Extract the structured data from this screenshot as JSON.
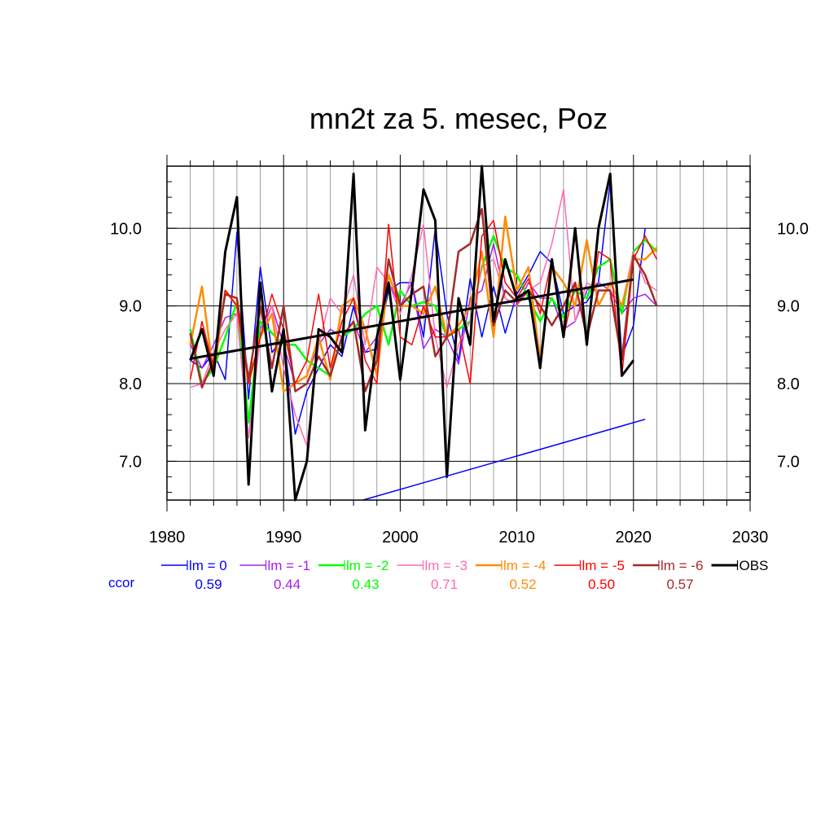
{
  "chart_data": {
    "type": "line",
    "title": "mn2t za 5. mesec, Poz",
    "xlabel": "",
    "ylabel": "",
    "xlim": [
      1980,
      2030
    ],
    "ylim": [
      6.5,
      10.8
    ],
    "x_ticks": [
      1980,
      1990,
      2000,
      2010,
      2020,
      2030
    ],
    "x_tick_labels": [
      "1980",
      "1990",
      "2000",
      "2010",
      "2020",
      "2030"
    ],
    "y_ticks": [
      7.0,
      8.0,
      9.0,
      10.0
    ],
    "y_tick_labels": [
      "7.0",
      "8.0",
      "9.0",
      "10.0"
    ],
    "grid": true,
    "legend_placement": "bottom",
    "ccor_label": "ccor",
    "ccor_color": "#0000ff",
    "series": [
      {
        "name": "lm = 0",
        "color": "#0000ff",
        "width": 1.5,
        "ccor": "0.59",
        "x": [
          1982,
          1983,
          1984,
          1985,
          1986,
          1987,
          1988,
          1989,
          1990,
          1991,
          1992,
          1993,
          1994,
          1995,
          1996,
          1997,
          1998,
          1999,
          2000,
          2001,
          2002,
          2003,
          2004,
          2005,
          2006,
          2007,
          2008,
          2009,
          2010,
          2011,
          2012,
          2013,
          2014,
          2015,
          2016,
          2017,
          2018,
          2019,
          2020,
          2021
        ],
        "values": [
          8.3,
          8.2,
          8.4,
          8.05,
          9.95,
          7.8,
          9.5,
          8.4,
          8.6,
          7.35,
          7.9,
          8.2,
          8.5,
          8.35,
          9.0,
          8.4,
          8.45,
          9.2,
          9.3,
          9.3,
          8.6,
          10.0,
          8.9,
          8.3,
          9.35,
          8.6,
          9.25,
          8.65,
          9.15,
          9.4,
          9.7,
          9.55,
          8.9,
          9.0,
          9.05,
          9.3,
          10.6,
          8.35,
          8.75,
          10.0
        ]
      },
      {
        "name": "lm = -1",
        "color": "#a020f0",
        "width": 1.5,
        "ccor": "0.44",
        "x": [
          1982,
          1983,
          1984,
          1985,
          1986,
          1987,
          1988,
          1989,
          1990,
          1991,
          1992,
          1993,
          1994,
          1995,
          1996,
          1997,
          1998,
          1999,
          2000,
          2001,
          2002,
          2003,
          2004,
          2005,
          2006,
          2007,
          2008,
          2009,
          2010,
          2011,
          2012,
          2013,
          2014,
          2015,
          2016,
          2017,
          2018,
          2019,
          2020,
          2021,
          2022
        ],
        "values": [
          8.5,
          8.2,
          8.5,
          8.85,
          8.9,
          7.3,
          8.7,
          9.0,
          8.5,
          8.0,
          8.1,
          8.5,
          8.7,
          8.6,
          8.8,
          8.4,
          8.6,
          9.3,
          9.0,
          9.3,
          8.45,
          8.7,
          8.6,
          8.25,
          9.1,
          9.2,
          9.8,
          9.1,
          9.0,
          9.3,
          9.1,
          9.1,
          8.7,
          8.8,
          9.2,
          9.3,
          9.2,
          8.9,
          9.1,
          9.15,
          9.0
        ]
      },
      {
        "name": "lm = -2",
        "color": "#00ff00",
        "width": 2.5,
        "ccor": "0.43",
        "x": [
          1982,
          1983,
          1984,
          1985,
          1986,
          1987,
          1988,
          1989,
          1990,
          1991,
          1992,
          1993,
          1994,
          1995,
          1996,
          1997,
          1998,
          1999,
          2000,
          2001,
          2002,
          2003,
          2004,
          2005,
          2006,
          2007,
          2008,
          2009,
          2010,
          2011,
          2012,
          2013,
          2014,
          2015,
          2016,
          2017,
          2018,
          2019,
          2020,
          2021,
          2022
        ],
        "values": [
          8.7,
          8.0,
          8.2,
          8.6,
          9.05,
          7.5,
          8.8,
          8.65,
          8.5,
          8.5,
          8.3,
          8.2,
          8.1,
          8.6,
          8.7,
          8.9,
          9.0,
          8.5,
          9.2,
          9.0,
          9.05,
          9.0,
          8.6,
          8.7,
          8.8,
          9.5,
          9.9,
          9.5,
          9.4,
          9.1,
          8.8,
          9.1,
          8.85,
          9.2,
          9.1,
          9.5,
          9.6,
          8.9,
          9.7,
          9.85,
          9.7
        ]
      },
      {
        "name": "lm = -3",
        "color": "#ff69b4",
        "width": 1.5,
        "ccor": "0.71",
        "x": [
          1982,
          1983,
          1984,
          1985,
          1986,
          1987,
          1988,
          1989,
          1990,
          1991,
          1992,
          1993,
          1994,
          1995,
          1996,
          1997,
          1998,
          1999,
          2000,
          2001,
          2002,
          2003,
          2004,
          2005,
          2006,
          2007,
          2008,
          2009,
          2010,
          2011,
          2012,
          2013,
          2014,
          2015,
          2016,
          2017,
          2018,
          2019,
          2020,
          2021,
          2022
        ],
        "values": [
          7.95,
          8.0,
          8.4,
          8.7,
          8.9,
          7.3,
          8.6,
          9.0,
          8.2,
          7.6,
          7.2,
          8.5,
          9.1,
          8.9,
          9.4,
          8.5,
          9.5,
          9.3,
          8.9,
          9.4,
          10.05,
          8.6,
          7.95,
          8.5,
          8.8,
          9.5,
          9.6,
          9.1,
          9.0,
          9.2,
          9.3,
          9.8,
          10.5,
          8.8,
          9.3,
          9.2,
          9.2,
          9.0,
          9.7,
          9.3,
          9.2
        ]
      },
      {
        "name": "lm = -4",
        "color": "#ff8c00",
        "width": 2.5,
        "ccor": "0.52",
        "x": [
          1982,
          1983,
          1984,
          1985,
          1986,
          1987,
          1988,
          1989,
          1990,
          1991,
          1992,
          1993,
          1994,
          1995,
          1996,
          1997,
          1998,
          1999,
          2000,
          2001,
          2002,
          2003,
          2004,
          2005,
          2006,
          2007,
          2008,
          2009,
          2010,
          2011,
          2012,
          2013,
          2014,
          2015,
          2016,
          2017,
          2018,
          2019,
          2020,
          2021,
          2022
        ],
        "values": [
          8.5,
          9.25,
          8.1,
          9.2,
          9.0,
          8.0,
          8.6,
          8.9,
          7.9,
          8.0,
          8.1,
          8.6,
          8.05,
          9.0,
          9.1,
          8.7,
          8.1,
          9.4,
          9.0,
          9.0,
          8.9,
          9.25,
          8.6,
          8.75,
          9.0,
          9.7,
          8.6,
          10.15,
          9.2,
          9.5,
          8.3,
          9.5,
          9.3,
          9.0,
          9.85,
          9.0,
          9.3,
          9.0,
          9.6,
          9.6,
          9.75
        ]
      },
      {
        "name": "lm = -5",
        "color": "#ff0000",
        "width": 1.5,
        "ccor": "0.50",
        "x": [
          1982,
          1983,
          1984,
          1985,
          1986,
          1987,
          1988,
          1989,
          1990,
          1991,
          1992,
          1993,
          1994,
          1995,
          1996,
          1997,
          1998,
          1999,
          2000,
          2001,
          2002,
          2003,
          2004,
          2005,
          2006,
          2007,
          2008,
          2009,
          2010,
          2011,
          2012,
          2013,
          2014,
          2015,
          2016,
          2017,
          2018,
          2019,
          2020,
          2021,
          2022
        ],
        "values": [
          8.05,
          8.8,
          8.2,
          9.2,
          9.0,
          8.0,
          8.6,
          9.15,
          8.7,
          8.0,
          8.3,
          9.15,
          8.2,
          8.8,
          9.1,
          8.3,
          8.0,
          10.05,
          8.6,
          8.5,
          9.0,
          8.6,
          8.6,
          8.7,
          8.0,
          9.9,
          10.1,
          9.3,
          9.1,
          9.35,
          8.9,
          9.6,
          8.6,
          9.3,
          8.6,
          9.7,
          9.6,
          8.1,
          9.6,
          9.9,
          9.6
        ]
      },
      {
        "name": "lm = -6",
        "color": "#a52a2a",
        "width": 2.5,
        "ccor": "0.57",
        "x": [
          1982,
          1983,
          1984,
          1985,
          1986,
          1987,
          1988,
          1989,
          1990,
          1991,
          1992,
          1993,
          1994,
          1995,
          1996,
          1997,
          1998,
          1999,
          2000,
          2001,
          2002,
          2003,
          2004,
          2005,
          2006,
          2007,
          2008,
          2009,
          2010,
          2011,
          2012,
          2013,
          2014,
          2015,
          2016,
          2017,
          2018,
          2019,
          2020,
          2021,
          2022
        ],
        "values": [
          8.65,
          7.95,
          8.3,
          9.15,
          9.1,
          8.05,
          9.0,
          8.2,
          9.0,
          7.9,
          8.0,
          8.35,
          8.1,
          8.6,
          8.8,
          7.9,
          8.3,
          9.6,
          9.0,
          9.15,
          9.25,
          8.35,
          8.6,
          9.7,
          9.8,
          10.25,
          8.75,
          9.2,
          9.05,
          9.2,
          9.0,
          8.75,
          9.0,
          9.3,
          8.6,
          9.2,
          9.2,
          8.3,
          9.65,
          9.4,
          9.0
        ]
      },
      {
        "name": "OBS",
        "color": "#000000",
        "width": 3,
        "ccor": "",
        "x": [
          1982,
          1983,
          1984,
          1985,
          1986,
          1987,
          1988,
          1989,
          1990,
          1991,
          1992,
          1993,
          1994,
          1995,
          1996,
          1997,
          1998,
          1999,
          2000,
          2001,
          2002,
          2003,
          2004,
          2005,
          2006,
          2007,
          2008,
          2009,
          2010,
          2011,
          2012,
          2013,
          2014,
          2015,
          2016,
          2017,
          2018,
          2019,
          2020
        ],
        "values": [
          8.3,
          8.7,
          8.1,
          9.7,
          10.4,
          6.7,
          9.3,
          7.9,
          8.7,
          6.5,
          7.0,
          8.7,
          8.6,
          8.4,
          10.7,
          7.4,
          8.6,
          9.3,
          8.05,
          9.2,
          10.5,
          10.1,
          6.8,
          9.1,
          8.5,
          10.8,
          8.8,
          9.6,
          9.1,
          9.2,
          8.2,
          9.6,
          8.6,
          10.0,
          8.5,
          10.0,
          10.7,
          8.1,
          8.3
        ]
      }
    ],
    "trend_lines": [
      {
        "color": "#000000",
        "width": 3,
        "x": [
          1982,
          2020
        ],
        "values": [
          8.32,
          9.34
        ]
      },
      {
        "color": "#0000ff",
        "width": 1.5,
        "x": [
          1996.8,
          2021
        ],
        "values": [
          6.5,
          7.54
        ]
      }
    ]
  }
}
